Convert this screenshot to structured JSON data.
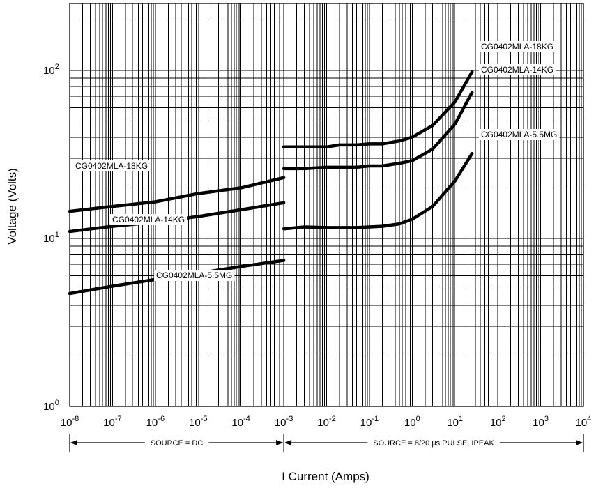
{
  "chart_data": {
    "type": "line",
    "title": "",
    "xlabel": "I Current (Amps)",
    "ylabel": "Voltage (Volts)",
    "x_scale": "log",
    "y_scale": "log",
    "xlim": [
      1e-08,
      10000
    ],
    "ylim": [
      1,
      250
    ],
    "grid": true,
    "x_ticks": [
      {
        "base": "10",
        "exp": "-8",
        "value": 1e-08
      },
      {
        "base": "10",
        "exp": "-7",
        "value": 1e-07
      },
      {
        "base": "10",
        "exp": "-6",
        "value": 1e-06
      },
      {
        "base": "10",
        "exp": "-5",
        "value": 1e-05
      },
      {
        "base": "10",
        "exp": "-4",
        "value": 0.0001
      },
      {
        "base": "10",
        "exp": "-3",
        "value": 0.001
      },
      {
        "base": "10",
        "exp": "-2",
        "value": 0.01
      },
      {
        "base": "10",
        "exp": "-1",
        "value": 0.1
      },
      {
        "base": "10",
        "exp": "0",
        "value": 1
      },
      {
        "base": "10",
        "exp": "1",
        "value": 10
      },
      {
        "base": "10",
        "exp": "2",
        "value": 100
      },
      {
        "base": "10",
        "exp": "3",
        "value": 1000
      },
      {
        "base": "10",
        "exp": "4",
        "value": 10000
      }
    ],
    "y_ticks": [
      {
        "base": "10",
        "exp": "0",
        "value": 1
      },
      {
        "base": "10",
        "exp": "1",
        "value": 10
      },
      {
        "base": "10",
        "exp": "2",
        "value": 100
      }
    ],
    "regions": [
      {
        "label": "SOURCE = DC",
        "x_range": [
          1e-08,
          0.001
        ]
      },
      {
        "label": "SOURCE = 8/20 μs PULSE, IPEAK",
        "x_range": [
          0.001,
          10000
        ]
      }
    ],
    "series": [
      {
        "name": "CG0402MLA-18KG",
        "segment": "dc",
        "x": [
          1e-08,
          1e-07,
          1e-06,
          1e-05,
          0.0001,
          0.001
        ],
        "y": [
          14.5,
          15.5,
          16.5,
          18.5,
          20,
          23
        ]
      },
      {
        "name": "CG0402MLA-14KG",
        "segment": "dc",
        "x": [
          1e-08,
          1e-07,
          1e-06,
          1e-05,
          0.0001,
          0.001
        ],
        "y": [
          11,
          11.8,
          12.5,
          13.5,
          14.8,
          16.3
        ]
      },
      {
        "name": "CG0402MLA-5.5MG",
        "segment": "dc",
        "x": [
          1e-08,
          1e-07,
          1e-06,
          1e-05,
          0.0001,
          0.001
        ],
        "y": [
          4.7,
          5.2,
          5.7,
          6.2,
          6.8,
          7.4
        ]
      },
      {
        "name": "CG0402MLA-18KG",
        "segment": "pulse",
        "x": [
          0.001,
          0.003,
          0.01,
          0.02,
          0.05,
          0.1,
          0.2,
          0.5,
          1,
          3,
          10,
          25
        ],
        "y": [
          35,
          35,
          35,
          36,
          36,
          36.5,
          36.5,
          38,
          40,
          47,
          65,
          98
        ]
      },
      {
        "name": "CG0402MLA-14KG",
        "segment": "pulse",
        "x": [
          0.001,
          0.003,
          0.01,
          0.02,
          0.05,
          0.1,
          0.2,
          0.5,
          1,
          3,
          10,
          25
        ],
        "y": [
          26,
          26,
          26.5,
          26.5,
          26.5,
          27,
          27,
          28,
          29,
          34,
          48,
          74
        ]
      },
      {
        "name": "CG0402MLA-5.5MG",
        "segment": "pulse",
        "x": [
          0.001,
          0.003,
          0.01,
          0.02,
          0.05,
          0.1,
          0.2,
          0.5,
          1,
          3,
          10,
          25
        ],
        "y": [
          11.4,
          11.7,
          11.6,
          11.6,
          11.6,
          11.7,
          11.8,
          12.2,
          13,
          15.5,
          22,
          32
        ]
      }
    ],
    "series_labels": [
      {
        "text": "CG0402MLA-18KG"
      },
      {
        "text": "CG0402MLA-14KG"
      },
      {
        "text": "CG0402MLA-5.5MG"
      },
      {
        "text": "CG0402MLA-18KG"
      },
      {
        "text": "CG0402MLA-14KG"
      },
      {
        "text": "CG0402MLA-5.5MG"
      }
    ]
  }
}
